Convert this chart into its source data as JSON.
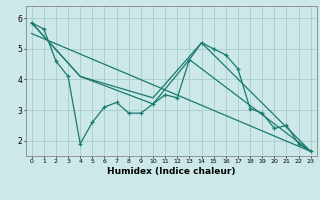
{
  "title": "",
  "xlabel": "Humidex (Indice chaleur)",
  "bg_color": "#cce8e8",
  "line_color": "#1a7a6e",
  "grid_color": "#aacccc",
  "xlim": [
    -0.5,
    23.5
  ],
  "ylim": [
    1.5,
    6.4
  ],
  "yticks": [
    2,
    3,
    4,
    5,
    6
  ],
  "xticks": [
    0,
    1,
    2,
    3,
    4,
    5,
    6,
    7,
    8,
    9,
    10,
    11,
    12,
    13,
    14,
    15,
    16,
    17,
    18,
    19,
    20,
    21,
    22,
    23
  ],
  "line1": [
    5.85,
    5.65,
    4.6,
    4.1,
    1.9,
    2.6,
    3.1,
    3.25,
    2.9,
    2.9,
    3.2,
    3.5,
    3.4,
    4.65,
    5.2,
    5.0,
    4.8,
    4.35,
    3.05,
    2.9,
    2.4,
    2.5,
    1.9,
    1.65
  ],
  "line2_x": [
    0,
    4,
    10,
    13,
    23
  ],
  "line2_y": [
    5.85,
    4.1,
    3.2,
    4.65,
    1.65
  ],
  "line3_x": [
    0,
    4,
    10,
    14,
    23
  ],
  "line3_y": [
    5.85,
    4.1,
    3.4,
    5.2,
    1.65
  ],
  "line4_x": [
    0,
    23
  ],
  "line4_y": [
    5.5,
    1.65
  ]
}
